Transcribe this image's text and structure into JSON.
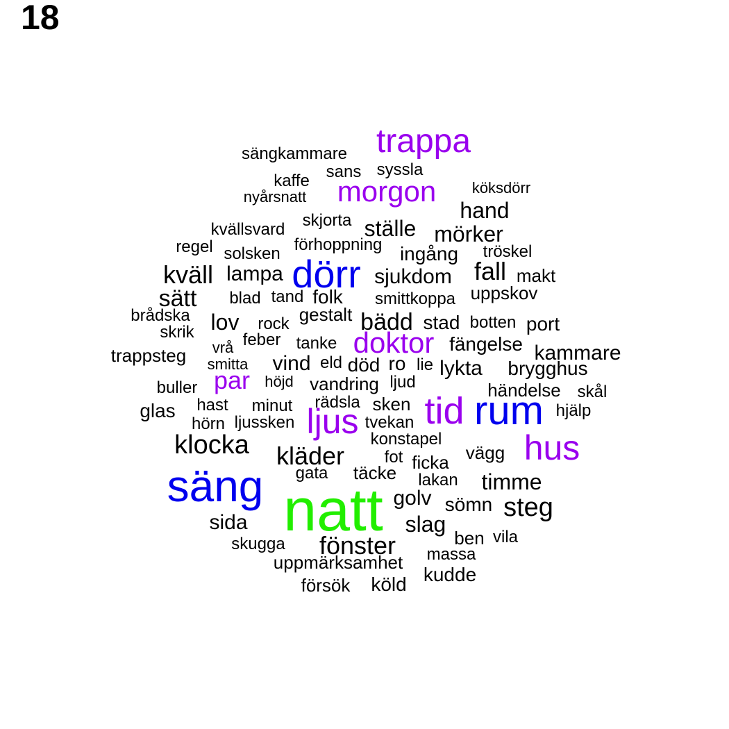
{
  "panel_label": "18",
  "colors": {
    "highest": "#22ee00",
    "high": "#0000ee",
    "mid": "#9a00ee",
    "base": "#000000"
  },
  "words": [
    {
      "text": "natt",
      "color": "#22ee00"
    },
    {
      "text": "säng",
      "color": "#0000ee"
    },
    {
      "text": "dörr",
      "color": "#0000ee"
    },
    {
      "text": "rum",
      "color": "#0000ee"
    },
    {
      "text": "trappa",
      "color": "#9a00ee"
    },
    {
      "text": "morgon",
      "color": "#9a00ee"
    },
    {
      "text": "doktor",
      "color": "#9a00ee"
    },
    {
      "text": "tid",
      "color": "#9a00ee"
    },
    {
      "text": "ljus",
      "color": "#9a00ee"
    },
    {
      "text": "hus",
      "color": "#9a00ee"
    },
    {
      "text": "par",
      "color": "#9a00ee"
    },
    {
      "text": "sängkammare",
      "color": "#000000"
    },
    {
      "text": "sans",
      "color": "#000000"
    },
    {
      "text": "syssla",
      "color": "#000000"
    },
    {
      "text": "kaffe",
      "color": "#000000"
    },
    {
      "text": "köksdörr",
      "color": "#000000"
    },
    {
      "text": "nyårsnatt",
      "color": "#000000"
    },
    {
      "text": "hand",
      "color": "#000000"
    },
    {
      "text": "skjorta",
      "color": "#000000"
    },
    {
      "text": "ställe",
      "color": "#000000"
    },
    {
      "text": "kvällsvard",
      "color": "#000000"
    },
    {
      "text": "mörker",
      "color": "#000000"
    },
    {
      "text": "regel",
      "color": "#000000"
    },
    {
      "text": "förhoppning",
      "color": "#000000"
    },
    {
      "text": "solsken",
      "color": "#000000"
    },
    {
      "text": "ingång",
      "color": "#000000"
    },
    {
      "text": "tröskel",
      "color": "#000000"
    },
    {
      "text": "kväll",
      "color": "#000000"
    },
    {
      "text": "lampa",
      "color": "#000000"
    },
    {
      "text": "fall",
      "color": "#000000"
    },
    {
      "text": "sjukdom",
      "color": "#000000"
    },
    {
      "text": "makt",
      "color": "#000000"
    },
    {
      "text": "uppskov",
      "color": "#000000"
    },
    {
      "text": "sätt",
      "color": "#000000"
    },
    {
      "text": "blad",
      "color": "#000000"
    },
    {
      "text": "tand",
      "color": "#000000"
    },
    {
      "text": "folk",
      "color": "#000000"
    },
    {
      "text": "smittkoppa",
      "color": "#000000"
    },
    {
      "text": "brådska",
      "color": "#000000"
    },
    {
      "text": "gestalt",
      "color": "#000000"
    },
    {
      "text": "lov",
      "color": "#000000"
    },
    {
      "text": "bädd",
      "color": "#000000"
    },
    {
      "text": "stad",
      "color": "#000000"
    },
    {
      "text": "botten",
      "color": "#000000"
    },
    {
      "text": "port",
      "color": "#000000"
    },
    {
      "text": "skrik",
      "color": "#000000"
    },
    {
      "text": "rock",
      "color": "#000000"
    },
    {
      "text": "feber",
      "color": "#000000"
    },
    {
      "text": "vrå",
      "color": "#000000"
    },
    {
      "text": "tanke",
      "color": "#000000"
    },
    {
      "text": "fängelse",
      "color": "#000000"
    },
    {
      "text": "kammare",
      "color": "#000000"
    },
    {
      "text": "trappsteg",
      "color": "#000000"
    },
    {
      "text": "smitta",
      "color": "#000000"
    },
    {
      "text": "vind",
      "color": "#000000"
    },
    {
      "text": "eld",
      "color": "#000000"
    },
    {
      "text": "död",
      "color": "#000000"
    },
    {
      "text": "ro",
      "color": "#000000"
    },
    {
      "text": "lie",
      "color": "#000000"
    },
    {
      "text": "lykta",
      "color": "#000000"
    },
    {
      "text": "brygghus",
      "color": "#000000"
    },
    {
      "text": "buller",
      "color": "#000000"
    },
    {
      "text": "höjd",
      "color": "#000000"
    },
    {
      "text": "vandring",
      "color": "#000000"
    },
    {
      "text": "ljud",
      "color": "#000000"
    },
    {
      "text": "händelse",
      "color": "#000000"
    },
    {
      "text": "skål",
      "color": "#000000"
    },
    {
      "text": "glas",
      "color": "#000000"
    },
    {
      "text": "hast",
      "color": "#000000"
    },
    {
      "text": "minut",
      "color": "#000000"
    },
    {
      "text": "rädsla",
      "color": "#000000"
    },
    {
      "text": "sken",
      "color": "#000000"
    },
    {
      "text": "hjälp",
      "color": "#000000"
    },
    {
      "text": "hörn",
      "color": "#000000"
    },
    {
      "text": "ljussken",
      "color": "#000000"
    },
    {
      "text": "tvekan",
      "color": "#000000"
    },
    {
      "text": "klocka",
      "color": "#000000"
    },
    {
      "text": "konstapel",
      "color": "#000000"
    },
    {
      "text": "vägg",
      "color": "#000000"
    },
    {
      "text": "kläder",
      "color": "#000000"
    },
    {
      "text": "fot",
      "color": "#000000"
    },
    {
      "text": "ficka",
      "color": "#000000"
    },
    {
      "text": "gata",
      "color": "#000000"
    },
    {
      "text": "täcke",
      "color": "#000000"
    },
    {
      "text": "lakan",
      "color": "#000000"
    },
    {
      "text": "timme",
      "color": "#000000"
    },
    {
      "text": "golv",
      "color": "#000000"
    },
    {
      "text": "sömn",
      "color": "#000000"
    },
    {
      "text": "steg",
      "color": "#000000"
    },
    {
      "text": "sida",
      "color": "#000000"
    },
    {
      "text": "slag",
      "color": "#000000"
    },
    {
      "text": "ben",
      "color": "#000000"
    },
    {
      "text": "vila",
      "color": "#000000"
    },
    {
      "text": "skugga",
      "color": "#000000"
    },
    {
      "text": "fönster",
      "color": "#000000"
    },
    {
      "text": "massa",
      "color": "#000000"
    },
    {
      "text": "uppmärksamhet",
      "color": "#000000"
    },
    {
      "text": "kudde",
      "color": "#000000"
    },
    {
      "text": "försök",
      "color": "#000000"
    },
    {
      "text": "köld",
      "color": "#000000"
    }
  ]
}
